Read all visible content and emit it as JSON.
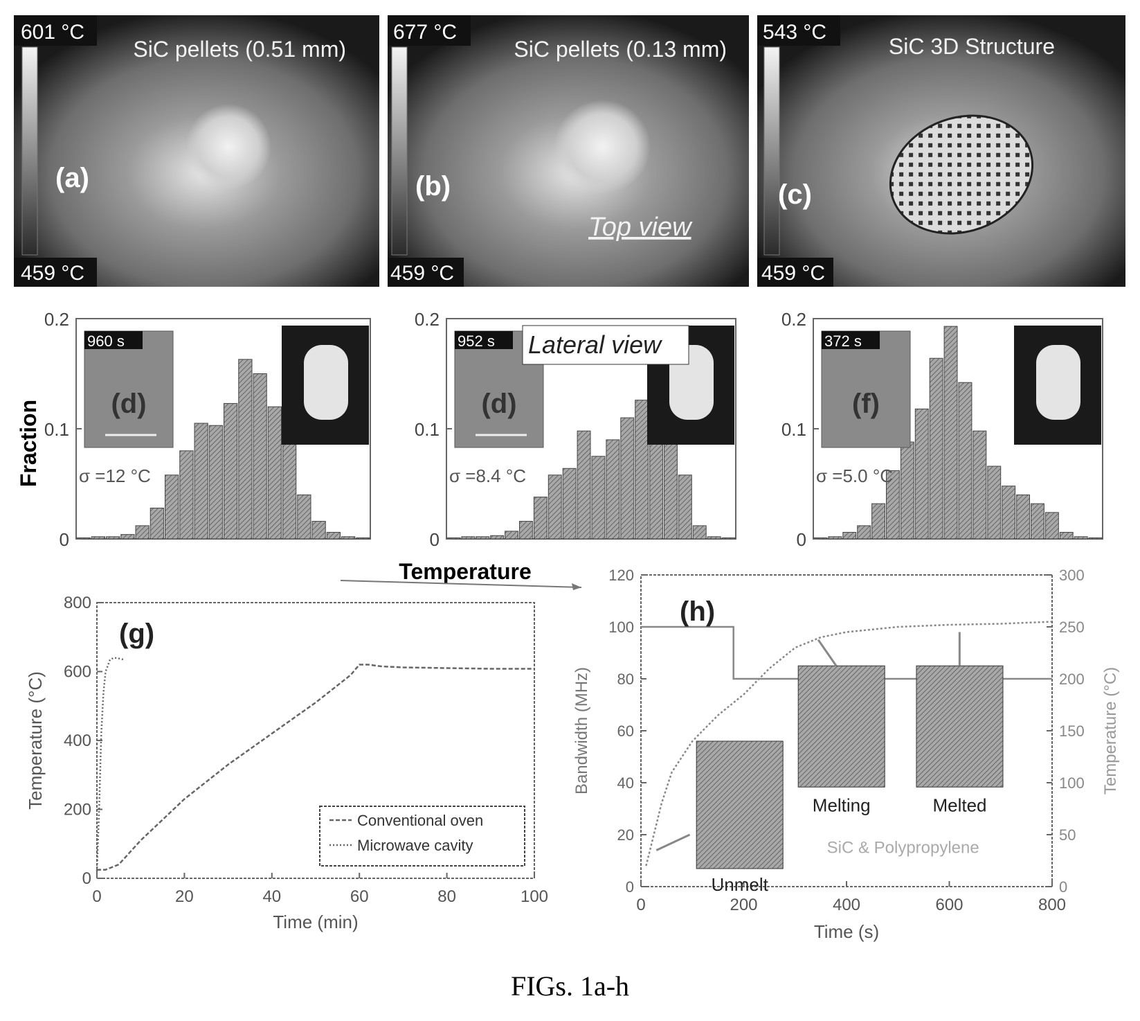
{
  "caption": "FIGs. 1a-h",
  "thermal_panels": [
    {
      "label": "(a)",
      "title": "SiC pellets (0.51 mm)",
      "t_max": "601 °C",
      "t_min": "459 °C",
      "note": "",
      "hotspot": "pellet"
    },
    {
      "label": "(b)",
      "title": "SiC pellets (0.13 mm)",
      "t_max": "677 °C",
      "t_min": "459 °C",
      "note": "Top view",
      "hotspot": "pellet"
    },
    {
      "label": "(c)",
      "title": "SiC 3D Structure",
      "t_max": "543 °C",
      "t_min": "459 °C",
      "note": "",
      "hotspot": "lattice"
    }
  ],
  "histogram_shared": {
    "ylabel": "Fraction",
    "xlabel": "Temperature",
    "yticks": [
      "0",
      "0.1",
      "0.2"
    ],
    "overlay_label": "Lateral view"
  },
  "colors": {
    "thermal_dark": "#1a1a1a",
    "thermal_mid": "#8a8a8a",
    "thermal_hot": "#e6e6e6",
    "bar_fill": "#9a9a9a",
    "line": "#777777"
  },
  "chart_data": [
    {
      "type": "bar",
      "label": "(d)",
      "time": "960 s",
      "sigma": "σ =12 °C",
      "ylim": [
        0,
        0.2
      ],
      "values": [
        0.001,
        0.002,
        0.002,
        0.004,
        0.012,
        0.028,
        0.058,
        0.08,
        0.105,
        0.103,
        0.123,
        0.163,
        0.15,
        0.12,
        0.09,
        0.04,
        0.016,
        0.006,
        0.002,
        0.001
      ]
    },
    {
      "type": "bar",
      "label": "(d)",
      "time": "952 s",
      "sigma": "σ =8.4 °C",
      "ylim": [
        0,
        0.2
      ],
      "values": [
        0.001,
        0.002,
        0.002,
        0.003,
        0.007,
        0.016,
        0.038,
        0.058,
        0.064,
        0.098,
        0.075,
        0.09,
        0.11,
        0.126,
        0.145,
        0.165,
        0.058,
        0.012,
        0.002,
        0.001
      ]
    },
    {
      "type": "bar",
      "label": "(f)",
      "time": "372 s",
      "sigma": "σ =5.0 °C",
      "ylim": [
        0,
        0.2
      ],
      "values": [
        0.001,
        0.002,
        0.006,
        0.012,
        0.032,
        0.062,
        0.088,
        0.118,
        0.164,
        0.193,
        0.142,
        0.098,
        0.066,
        0.048,
        0.04,
        0.032,
        0.024,
        0.006,
        0.002,
        0.001
      ]
    },
    {
      "type": "line",
      "label": "(g)",
      "xlabel": "Time (min)",
      "ylabel": "Temperature (°C)",
      "xlim": [
        0,
        100
      ],
      "ylim": [
        0,
        800
      ],
      "xticks": [
        "0",
        "20",
        "40",
        "60",
        "80",
        "100"
      ],
      "yticks": [
        "0",
        "200",
        "400",
        "600",
        "800"
      ],
      "legend_position": "bottom-right",
      "series": [
        {
          "name": "Conventional oven",
          "x": [
            0,
            2,
            5,
            10,
            20,
            30,
            40,
            50,
            58,
            60,
            62,
            65,
            70,
            80,
            90,
            100
          ],
          "y": [
            25,
            25,
            40,
            110,
            230,
            330,
            420,
            510,
            590,
            620,
            620,
            615,
            612,
            610,
            608,
            608
          ]
        },
        {
          "name": "Microwave cavity",
          "x": [
            0,
            0.5,
            1,
            1.5,
            2,
            3,
            4,
            5,
            6
          ],
          "y": [
            20,
            200,
            420,
            540,
            600,
            635,
            640,
            638,
            635
          ]
        }
      ]
    },
    {
      "type": "line",
      "label": "(h)",
      "xlabel": "Time (s)",
      "ylabel": "Bandwidth (MHz)",
      "y2label": "Temperature (°C)",
      "xlim": [
        0,
        800
      ],
      "ylim": [
        0,
        120
      ],
      "y2lim": [
        0,
        300
      ],
      "xticks": [
        "0",
        "200",
        "400",
        "600",
        "800"
      ],
      "yticks": [
        "0",
        "20",
        "40",
        "60",
        "80",
        "100",
        "120"
      ],
      "y2ticks": [
        "0",
        "50",
        "100",
        "150",
        "200",
        "250",
        "300"
      ],
      "annotation": "SiC & Polypropylene",
      "insets": [
        "Unmelt",
        "Melting",
        "Melted"
      ],
      "series": [
        {
          "axis": "left",
          "x": [
            0,
            180,
            180,
            200,
            200,
            800
          ],
          "y": [
            100,
            100,
            80,
            80,
            80,
            80
          ]
        },
        {
          "axis": "right",
          "x": [
            10,
            20,
            40,
            60,
            100,
            150,
            200,
            250,
            300,
            350,
            400,
            500,
            600,
            700,
            800
          ],
          "y": [
            20,
            40,
            80,
            110,
            140,
            165,
            185,
            210,
            230,
            240,
            245,
            250,
            252,
            253,
            255
          ]
        }
      ]
    }
  ]
}
